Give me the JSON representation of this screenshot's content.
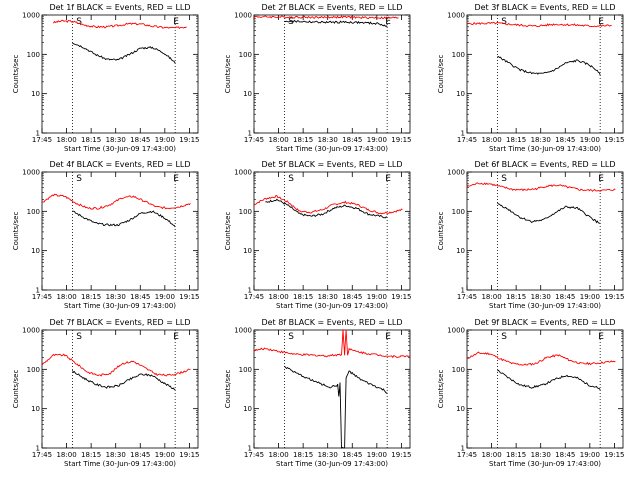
{
  "chart_data": [
    {
      "type": "line",
      "title": "Det 1f BLACK = Events, RED = LLD",
      "xlabel": "Start Time (30-Jun-09 17:43:00)",
      "ylabel": "Counts/sec",
      "yscale": "log",
      "ylim": [
        1,
        1000
      ],
      "xlim": [
        -3,
        38
      ],
      "x_units": "minutes after 17:45",
      "yticks": [
        "1",
        "10",
        "100",
        "1000"
      ],
      "xticks": [
        "17:45",
        "18:00",
        "18:15",
        "18:30",
        "18:45",
        "19:00",
        "19:15"
      ],
      "vlines": [
        5,
        32
      ],
      "markers": [
        {
          "x": 6,
          "text": "S"
        },
        {
          "x": 31.5,
          "text": "E"
        }
      ],
      "series": [
        {
          "name": "RED",
          "color": "#ff0000",
          "x": [
            0,
            2,
            5,
            8,
            11,
            14,
            17,
            20,
            23,
            26,
            29,
            32,
            35
          ],
          "values": [
            640,
            700,
            690,
            560,
            500,
            500,
            540,
            600,
            590,
            520,
            480,
            470,
            500
          ]
        },
        {
          "name": "BLACK",
          "color": "#000000",
          "x": [
            5,
            8,
            11,
            14,
            17,
            20,
            23,
            26,
            29,
            31,
            32
          ],
          "values": [
            200,
            150,
            100,
            75,
            72,
            100,
            145,
            150,
            110,
            75,
            60
          ]
        }
      ]
    },
    {
      "type": "line",
      "title": "Det 2f BLACK = Events, RED = LLD",
      "xlabel": "Start Time (30-Jun-09 17:43:00)",
      "ylabel": "Counts/sec",
      "yscale": "log",
      "ylim": [
        1,
        1000
      ],
      "xlim": [
        -3,
        38
      ],
      "x_units": "minutes after 17:45",
      "yticks": [
        "1",
        "10",
        "100",
        "1000"
      ],
      "xticks": [
        "17:45",
        "18:00",
        "18:15",
        "18:30",
        "18:45",
        "19:00",
        "19:15"
      ],
      "vlines": [
        5,
        32
      ],
      "markers": [
        {
          "x": 6,
          "text": "S"
        },
        {
          "x": 31.5,
          "text": "E"
        }
      ],
      "series": [
        {
          "name": "RED",
          "color": "#ff0000",
          "x": [
            -3,
            5,
            10,
            15,
            20,
            25,
            30,
            35
          ],
          "values": [
            900,
            890,
            880,
            870,
            890,
            860,
            850,
            850
          ]
        },
        {
          "name": "BLACK",
          "color": "#000000",
          "x": [
            5,
            10,
            15,
            20,
            25,
            30,
            32
          ],
          "values": [
            700,
            680,
            650,
            660,
            640,
            600,
            500
          ]
        }
      ]
    },
    {
      "type": "line",
      "title": "Det 3f BLACK = Events, RED = LLD",
      "xlabel": "Start Time (30-Jun-09 17:43:00)",
      "ylabel": "Counts/sec",
      "yscale": "log",
      "ylim": [
        1,
        1000
      ],
      "xlim": [
        -3,
        38
      ],
      "x_units": "minutes after 17:45",
      "yticks": [
        "1",
        "10",
        "100",
        "1000"
      ],
      "xticks": [
        "17:45",
        "18:00",
        "18:15",
        "18:30",
        "18:45",
        "19:00",
        "19:15"
      ],
      "vlines": [
        5,
        32
      ],
      "markers": [
        {
          "x": 6,
          "text": "S"
        },
        {
          "x": 31.5,
          "text": "E"
        }
      ],
      "series": [
        {
          "name": "RED",
          "color": "#ff0000",
          "x": [
            -3,
            5,
            10,
            15,
            20,
            25,
            30,
            35
          ],
          "values": [
            600,
            620,
            560,
            520,
            580,
            560,
            520,
            540
          ]
        },
        {
          "name": "BLACK",
          "color": "#000000",
          "x": [
            5,
            8,
            11,
            14,
            17,
            20,
            23,
            26,
            29,
            31,
            32
          ],
          "values": [
            90,
            60,
            40,
            33,
            32,
            40,
            60,
            70,
            55,
            40,
            30
          ]
        }
      ]
    },
    {
      "type": "line",
      "title": "Det 4f BLACK = Events, RED = LLD",
      "xlabel": "Start Time (30-Jun-09 17:43:00)",
      "ylabel": "Counts/sec",
      "yscale": "log",
      "ylim": [
        1,
        1000
      ],
      "xlim": [
        -3,
        38
      ],
      "x_units": "minutes after 17:45",
      "yticks": [
        "1",
        "10",
        "100",
        "1000"
      ],
      "xticks": [
        "17:45",
        "18:00",
        "18:15",
        "18:30",
        "18:45",
        "19:00",
        "19:15"
      ],
      "vlines": [
        5,
        32
      ],
      "markers": [
        {
          "x": 6,
          "text": "S"
        },
        {
          "x": 31.5,
          "text": "E"
        }
      ],
      "series": [
        {
          "name": "RED",
          "color": "#ff0000",
          "x": [
            -3,
            0,
            3,
            6,
            9,
            12,
            15,
            18,
            21,
            24,
            27,
            30,
            33,
            36
          ],
          "values": [
            170,
            260,
            240,
            160,
            120,
            120,
            150,
            220,
            240,
            180,
            130,
            120,
            130,
            160
          ]
        },
        {
          "name": "BLACK",
          "color": "#000000",
          "x": [
            5,
            8,
            11,
            14,
            17,
            20,
            23,
            26,
            29,
            31,
            32
          ],
          "values": [
            100,
            70,
            50,
            45,
            45,
            60,
            90,
            100,
            70,
            50,
            40
          ]
        }
      ]
    },
    {
      "type": "line",
      "title": "Det 5f BLACK = Events, RED = LLD",
      "xlabel": "Start Time (30-Jun-09 17:43:00)",
      "ylabel": "Counts/sec",
      "yscale": "log",
      "ylim": [
        1,
        1000
      ],
      "xlim": [
        -3,
        38
      ],
      "x_units": "minutes after 17:45",
      "yticks": [
        "1",
        "10",
        "100",
        "1000"
      ],
      "xticks": [
        "17:45",
        "18:00",
        "18:15",
        "18:30",
        "18:45",
        "19:00",
        "19:15"
      ],
      "vlines": [
        5,
        32
      ],
      "markers": [
        {
          "x": 6,
          "text": "S"
        },
        {
          "x": 31.5,
          "text": "E"
        }
      ],
      "series": [
        {
          "name": "RED",
          "color": "#ff0000",
          "x": [
            -3,
            0,
            3,
            6,
            9,
            12,
            15,
            18,
            21,
            24,
            27,
            30,
            33,
            36
          ],
          "values": [
            150,
            210,
            240,
            170,
            100,
            95,
            110,
            150,
            170,
            150,
            110,
            90,
            95,
            110
          ]
        },
        {
          "name": "BLACK",
          "color": "#000000",
          "x": [
            0,
            3,
            6,
            9,
            12,
            15,
            18,
            21,
            24,
            27,
            30,
            32
          ],
          "values": [
            170,
            200,
            140,
            85,
            75,
            85,
            120,
            140,
            120,
            85,
            75,
            70
          ]
        }
      ]
    },
    {
      "type": "line",
      "title": "Det 6f BLACK = Events, RED = LLD",
      "xlabel": "Start Time (30-Jun-09 17:43:00)",
      "ylabel": "Counts/sec",
      "yscale": "log",
      "ylim": [
        1,
        1000
      ],
      "xlim": [
        -3,
        38
      ],
      "x_units": "minutes after 17:45",
      "yticks": [
        "1",
        "10",
        "100",
        "1000"
      ],
      "xticks": [
        "17:45",
        "18:00",
        "18:15",
        "18:30",
        "18:45",
        "19:00",
        "19:15"
      ],
      "vlines": [
        5,
        32
      ],
      "markers": [
        {
          "x": 6,
          "text": "S"
        },
        {
          "x": 31.5,
          "text": "E"
        }
      ],
      "series": [
        {
          "name": "RED",
          "color": "#ff0000",
          "x": [
            -3,
            0,
            3,
            6,
            9,
            12,
            15,
            18,
            21,
            24,
            27,
            30,
            33,
            36
          ],
          "values": [
            420,
            520,
            500,
            420,
            360,
            350,
            370,
            440,
            460,
            400,
            350,
            340,
            340,
            360
          ]
        },
        {
          "name": "BLACK",
          "color": "#000000",
          "x": [
            5,
            8,
            11,
            14,
            17,
            20,
            23,
            26,
            29,
            31,
            32
          ],
          "values": [
            160,
            110,
            70,
            55,
            60,
            90,
            130,
            120,
            75,
            55,
            50
          ]
        }
      ]
    },
    {
      "type": "line",
      "title": "Det 7f BLACK = Events, RED = LLD",
      "xlabel": "Start Time (30-Jun-09 17:43:00)",
      "ylabel": "Counts/sec",
      "yscale": "log",
      "ylim": [
        1,
        1000
      ],
      "xlim": [
        -3,
        38
      ],
      "x_units": "minutes after 17:45",
      "yticks": [
        "1",
        "10",
        "100",
        "1000"
      ],
      "xticks": [
        "17:45",
        "18:00",
        "18:15",
        "18:30",
        "18:45",
        "19:00",
        "19:15"
      ],
      "vlines": [
        5,
        32
      ],
      "markers": [
        {
          "x": 6,
          "text": "S"
        },
        {
          "x": 31.5,
          "text": "E"
        }
      ],
      "series": [
        {
          "name": "RED",
          "color": "#ff0000",
          "x": [
            -3,
            0,
            3,
            6,
            9,
            12,
            15,
            18,
            21,
            24,
            27,
            30,
            33,
            36
          ],
          "values": [
            130,
            230,
            230,
            140,
            85,
            70,
            80,
            140,
            160,
            110,
            75,
            70,
            80,
            100
          ]
        },
        {
          "name": "BLACK",
          "color": "#000000",
          "x": [
            5,
            8,
            11,
            14,
            17,
            20,
            23,
            26,
            29,
            31,
            32
          ],
          "values": [
            90,
            60,
            42,
            35,
            38,
            55,
            75,
            70,
            45,
            35,
            30
          ]
        }
      ]
    },
    {
      "type": "line",
      "title": "Det 8f BLACK = Events, RED = LLD",
      "xlabel": "Start Time (30-Jun-09 17:43:00)",
      "ylabel": "Counts/sec",
      "yscale": "log",
      "ylim": [
        1,
        1000
      ],
      "xlim": [
        -3,
        38
      ],
      "x_units": "minutes after 17:45",
      "yticks": [
        "1",
        "10",
        "100",
        "1000"
      ],
      "xticks": [
        "17:45",
        "18:00",
        "18:15",
        "18:30",
        "18:45",
        "19:00",
        "19:15"
      ],
      "vlines": [
        5,
        32
      ],
      "markers": [
        {
          "x": 6,
          "text": "S"
        },
        {
          "x": 31.5,
          "text": "E"
        }
      ],
      "series": [
        {
          "name": "RED",
          "color": "#ff0000",
          "x": [
            -3,
            0,
            4,
            8,
            12,
            16,
            20,
            20.4,
            20.8,
            21.2,
            21.6,
            22,
            23,
            26,
            30,
            34,
            38
          ],
          "values": [
            300,
            340,
            280,
            240,
            230,
            220,
            240,
            1000,
            240,
            1000,
            240,
            330,
            300,
            260,
            230,
            210,
            220
          ]
        },
        {
          "name": "BLACK",
          "color": "#000000",
          "x": [
            5,
            8,
            11,
            14,
            17,
            19,
            19.3,
            19.6,
            20,
            20.8,
            21.2,
            22,
            25,
            28,
            31,
            32
          ],
          "values": [
            120,
            80,
            60,
            45,
            35,
            40,
            20,
            45,
            1,
            1,
            60,
            90,
            55,
            40,
            30,
            25
          ]
        }
      ]
    },
    {
      "type": "line",
      "title": "Det 9f BLACK = Events, RED = LLD",
      "xlabel": "Start Time (30-Jun-09 17:43:00)",
      "ylabel": "Counts/sec",
      "yscale": "log",
      "ylim": [
        1,
        1000
      ],
      "xlim": [
        -3,
        38
      ],
      "x_units": "minutes after 17:45",
      "yticks": [
        "1",
        "10",
        "100",
        "1000"
      ],
      "xticks": [
        "17:45",
        "18:00",
        "18:15",
        "18:30",
        "18:45",
        "19:00",
        "19:15"
      ],
      "vlines": [
        5,
        32
      ],
      "markers": [
        {
          "x": 6,
          "text": "S"
        },
        {
          "x": 31.5,
          "text": "E"
        }
      ],
      "series": [
        {
          "name": "RED",
          "color": "#ff0000",
          "x": [
            -3,
            0,
            3,
            6,
            9,
            12,
            15,
            18,
            21,
            24,
            27,
            30,
            33,
            36
          ],
          "values": [
            190,
            260,
            250,
            180,
            140,
            130,
            140,
            200,
            230,
            170,
            140,
            140,
            150,
            160
          ]
        },
        {
          "name": "BLACK",
          "color": "#000000",
          "x": [
            5,
            8,
            11,
            14,
            17,
            20,
            23,
            26,
            29,
            31,
            32
          ],
          "values": [
            95,
            60,
            40,
            35,
            40,
            55,
            70,
            60,
            40,
            35,
            30
          ]
        }
      ]
    }
  ]
}
